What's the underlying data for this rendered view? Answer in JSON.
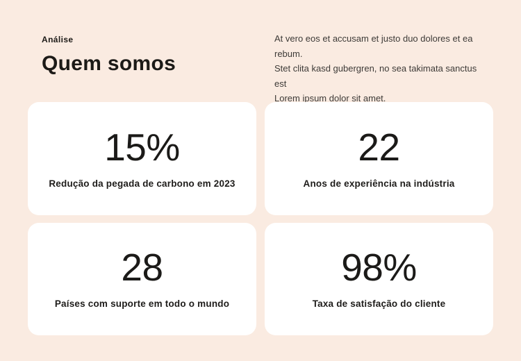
{
  "colors": {
    "background": "#FAEBE1",
    "card": "#FFFFFF",
    "heading_text": "#1C1A17",
    "body_text": "#3D3A37"
  },
  "header": {
    "eyebrow": "Análise",
    "title": "Quem somos",
    "description": "At vero eos et accusam et justo duo dolores et ea rebum. Stet clita kasd gubergren, no sea takimata sanctus est Lorem ipsum dolor sit amet.",
    "description_lines": [
      "At vero eos et accusam et justo duo dolores et ea rebum.",
      "Stet clita kasd gubergren, no sea takimata sanctus est",
      "Lorem ipsum dolor sit amet."
    ]
  },
  "stats": [
    {
      "value": "15%",
      "label": "Redução da pegada de carbono em 2023"
    },
    {
      "value": "22",
      "label": "Anos de experiência na indústria"
    },
    {
      "value": "28",
      "label": "Países com suporte em todo o mundo"
    },
    {
      "value": "98%",
      "label": "Taxa de satisfação do cliente"
    }
  ]
}
